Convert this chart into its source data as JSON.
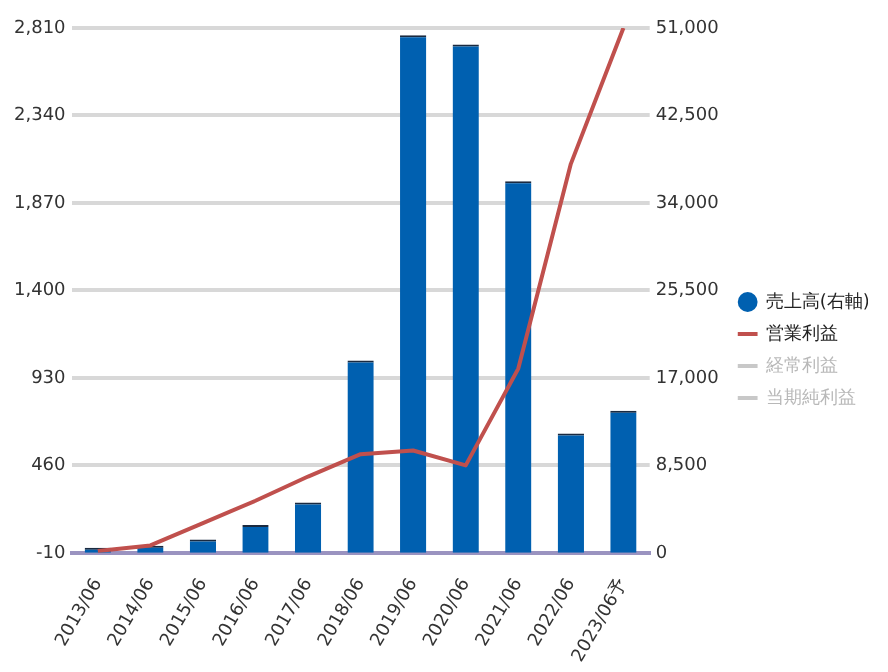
{
  "chart_data": {
    "type": "bar",
    "categories": [
      "2013/06",
      "2014/06",
      "2015/06",
      "2016/06",
      "2017/06",
      "2018/06",
      "2019/06",
      "2020/06",
      "2021/06",
      "2022/06",
      "2023/06予"
    ],
    "series": [
      {
        "name": "売上高(右軸)",
        "axis": "y2",
        "color": "#0060b0",
        "values": [
          500,
          700,
          1300,
          2700,
          4900,
          18700,
          50300,
          49400,
          36100,
          11600,
          13800
        ]
      },
      {
        "name": "営業利益",
        "type": "line",
        "color": "#c0504d",
        "values": [
          0,
          30,
          150,
          270,
          400,
          520,
          540,
          460,
          980,
          2080,
          2810
        ]
      },
      {
        "name": "経常利益",
        "type": "line",
        "color": "#c8c8c8",
        "values": [
          null,
          null,
          null,
          null,
          null,
          null,
          null,
          null,
          null,
          null,
          null
        ]
      },
      {
        "name": "当期純利益",
        "type": "line",
        "color": "#c8c8c8",
        "values": [
          null,
          null,
          null,
          null,
          null,
          null,
          null,
          null,
          null,
          null,
          null
        ]
      }
    ],
    "ylim": [
      -10,
      2810
    ],
    "yticks": [
      -10,
      460,
      930,
      {
        "value": 1400,
        "label": "1,400"
      },
      {
        "value": 1870,
        "label": "1,870"
      },
      {
        "value": 2340,
        "label": "2,340"
      },
      {
        "value": 2810,
        "label": "2,810"
      }
    ],
    "y2lim": [
      0,
      51000
    ],
    "y2ticks": [
      0,
      {
        "value": 8500,
        "label": "8,500"
      },
      {
        "value": 17000,
        "label": "17,000"
      },
      {
        "value": 25500,
        "label": "25,500"
      },
      {
        "value": 34000,
        "label": "34,000"
      },
      {
        "value": 42500,
        "label": "42,500"
      },
      {
        "value": 51000,
        "label": "51,000"
      }
    ],
    "grid": "y",
    "legend": "right",
    "marker": "none"
  }
}
